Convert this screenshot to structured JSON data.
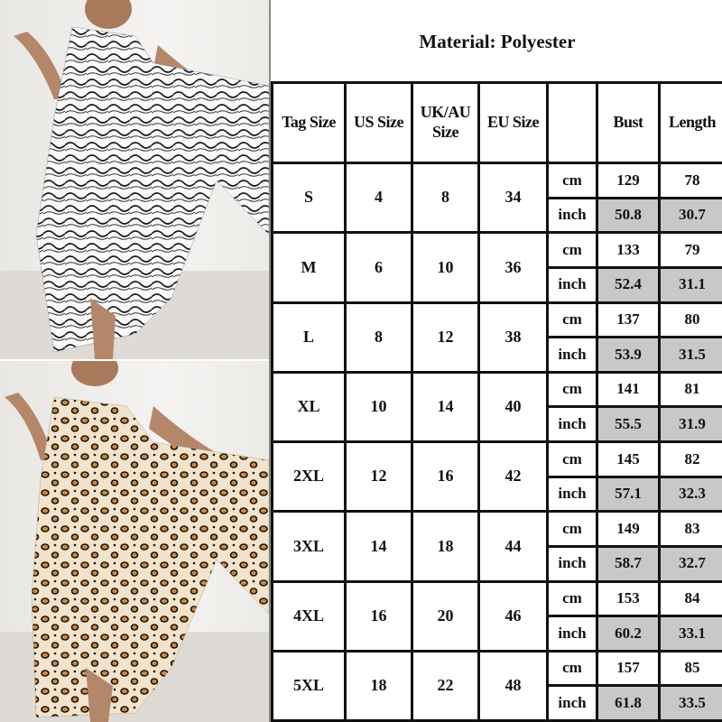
{
  "title": "Material: Polyester",
  "headers": [
    "Tag Size",
    "US Size",
    "UK/AU Size",
    "EU Size",
    "",
    "Bust",
    "Length"
  ],
  "units": {
    "cm": "cm",
    "inch": "inch"
  },
  "sizes": [
    {
      "tag": "S",
      "us": "4",
      "uk_au": "8",
      "eu": "34",
      "cm": {
        "bust": "129",
        "length": "78"
      },
      "inch": {
        "bust": "50.8",
        "length": "30.7"
      }
    },
    {
      "tag": "M",
      "us": "6",
      "uk_au": "10",
      "eu": "36",
      "cm": {
        "bust": "133",
        "length": "79"
      },
      "inch": {
        "bust": "52.4",
        "length": "31.1"
      }
    },
    {
      "tag": "L",
      "us": "8",
      "uk_au": "12",
      "eu": "38",
      "cm": {
        "bust": "137",
        "length": "80"
      },
      "inch": {
        "bust": "53.9",
        "length": "31.5"
      }
    },
    {
      "tag": "XL",
      "us": "10",
      "uk_au": "14",
      "eu": "40",
      "cm": {
        "bust": "141",
        "length": "81"
      },
      "inch": {
        "bust": "55.5",
        "length": "31.9"
      }
    },
    {
      "tag": "2XL",
      "us": "12",
      "uk_au": "16",
      "eu": "42",
      "cm": {
        "bust": "145",
        "length": "82"
      },
      "inch": {
        "bust": "57.1",
        "length": "32.3"
      }
    },
    {
      "tag": "3XL",
      "us": "14",
      "uk_au": "18",
      "eu": "44",
      "cm": {
        "bust": "149",
        "length": "83"
      },
      "inch": {
        "bust": "58.7",
        "length": "32.7"
      }
    },
    {
      "tag": "4XL",
      "us": "16",
      "uk_au": "20",
      "eu": "46",
      "cm": {
        "bust": "153",
        "length": "84"
      },
      "inch": {
        "bust": "60.2",
        "length": "33.1"
      }
    },
    {
      "tag": "5XL",
      "us": "18",
      "uk_au": "22",
      "eu": "48",
      "cm": {
        "bust": "157",
        "length": "85"
      },
      "inch": {
        "bust": "61.8",
        "length": "33.5"
      }
    }
  ],
  "photos": [
    {
      "pattern": "black-white-swirl-print",
      "colors": [
        "#ffffff",
        "#1a1a1a"
      ]
    },
    {
      "pattern": "leopard-print",
      "colors": [
        "#f3e3cc",
        "#c98a44",
        "#1b1410"
      ]
    }
  ],
  "colors": {
    "highlight": "#c8c8c8",
    "border": "#111111"
  }
}
